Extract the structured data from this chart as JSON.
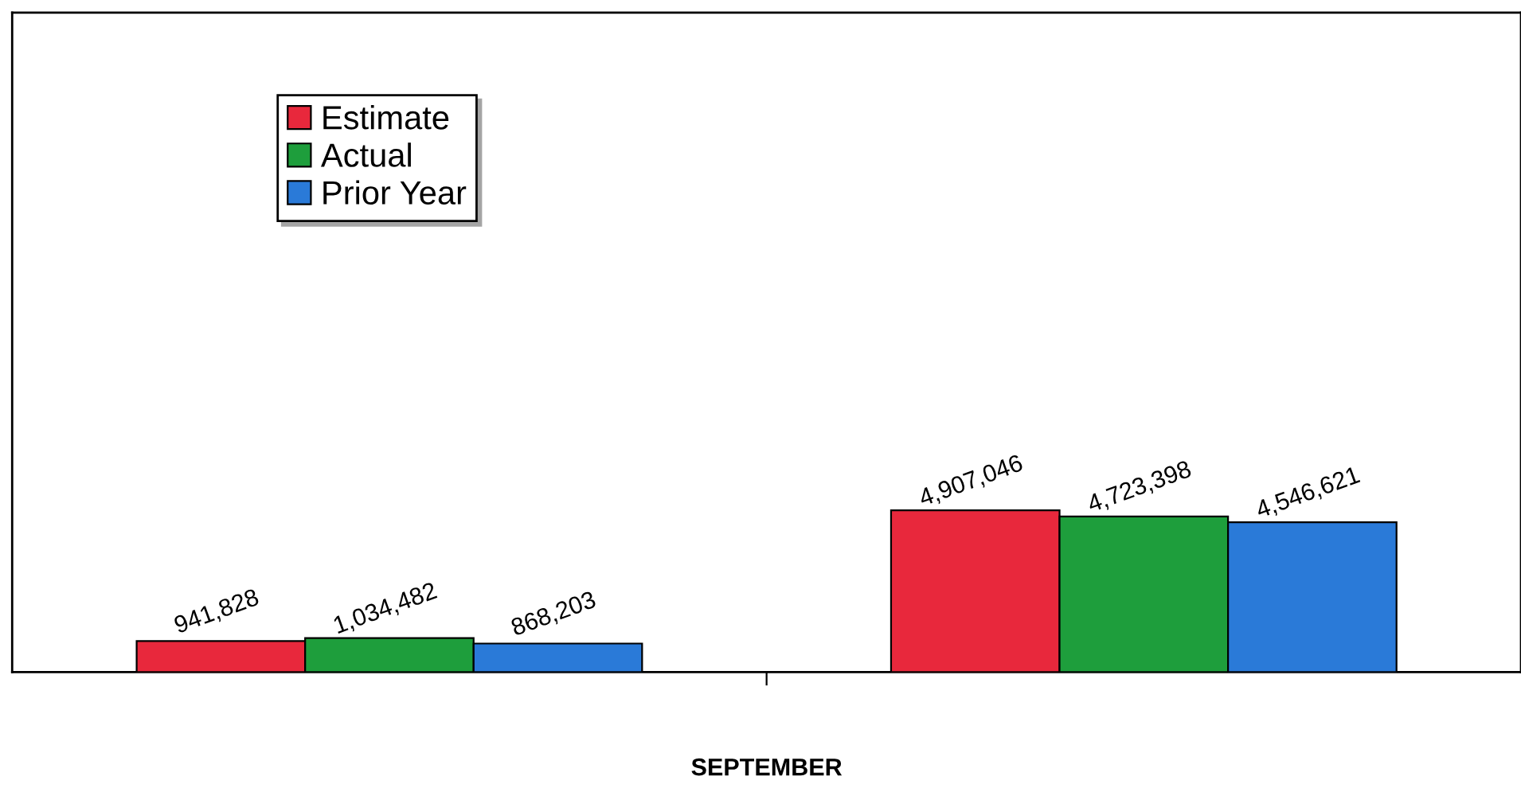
{
  "chart_data": {
    "type": "bar",
    "xlabel": "SEPTEMBER",
    "categories": [
      null,
      null
    ],
    "series": [
      {
        "name": "Estimate",
        "color": "#e8283c",
        "values": [
          941828,
          4907046
        ],
        "value_labels": [
          "941,828",
          "4,907,046"
        ]
      },
      {
        "name": "Actual",
        "color": "#1e9e3c",
        "values": [
          1034482,
          4723398
        ],
        "value_labels": [
          "1,034,482",
          "4,723,398"
        ]
      },
      {
        "name": "Prior Year",
        "color": "#2a7ad8",
        "values": [
          868203,
          4546621
        ],
        "value_labels": [
          "868,203",
          "4,546,621"
        ]
      }
    ],
    "ylim": [
      0,
      20000000
    ],
    "tick_labels": false,
    "grid": false,
    "legend": "top left"
  }
}
